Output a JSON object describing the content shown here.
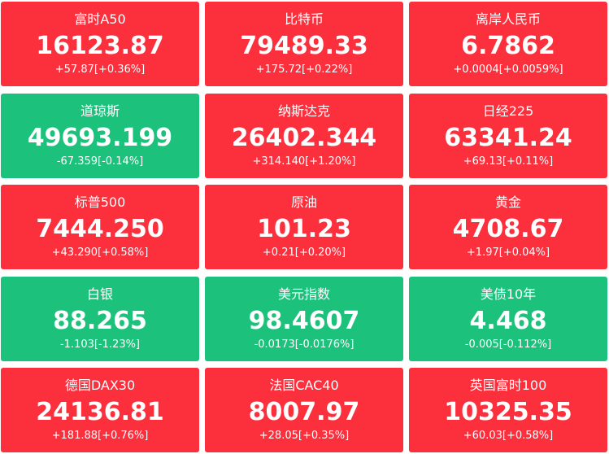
{
  "tiles": [
    {
      "name": "富时A50",
      "value": "16123.87",
      "change": "+57.87[+0.36%]",
      "color": "#fc2f3d"
    },
    {
      "name": "比特币",
      "value": "79489.33",
      "change": "+175.72[+0.22%]",
      "color": "#fc2f3d"
    },
    {
      "name": "离岸人民币",
      "value": "6.7862",
      "change": "+0.0004[+0.0059%]",
      "color": "#fc2f3d"
    },
    {
      "name": "道琼斯",
      "value": "49693.199",
      "change": "-67.359[-0.14%]",
      "color": "#1cc27b"
    },
    {
      "name": "纳斯达克",
      "value": "26402.344",
      "change": "+314.140[+1.20%]",
      "color": "#fc2f3d"
    },
    {
      "name": "日经225",
      "value": "63341.24",
      "change": "+69.13[+0.11%]",
      "color": "#fc2f3d"
    },
    {
      "name": "标普500",
      "value": "7444.250",
      "change": "+43.290[+0.58%]",
      "color": "#fc2f3d"
    },
    {
      "name": "原油",
      "value": "101.23",
      "change": "+0.21[+0.20%]",
      "color": "#fc2f3d"
    },
    {
      "name": "黄金",
      "value": "4708.67",
      "change": "+1.97[+0.04%]",
      "color": "#fc2f3d"
    },
    {
      "name": "白银",
      "value": "88.265",
      "change": "-1.103[-1.23%]",
      "color": "#1cc27b"
    },
    {
      "name": "美元指数",
      "value": "98.4607",
      "change": "-0.0173[-0.0176%]",
      "color": "#1cc27b"
    },
    {
      "name": "美债10年",
      "value": "4.468",
      "change": "-0.005[-0.112%]",
      "color": "#1cc27b"
    },
    {
      "name": "德国DAX30",
      "value": "24136.81",
      "change": "+181.88[+0.76%]",
      "color": "#fc2f3d"
    },
    {
      "name": "法国CAC40",
      "value": "8007.97",
      "change": "+28.05[+0.35%]",
      "color": "#fc2f3d"
    },
    {
      "name": "英国富时100",
      "value": "10325.35",
      "change": "+60.03[+0.58%]",
      "color": "#fc2f3d"
    }
  ]
}
